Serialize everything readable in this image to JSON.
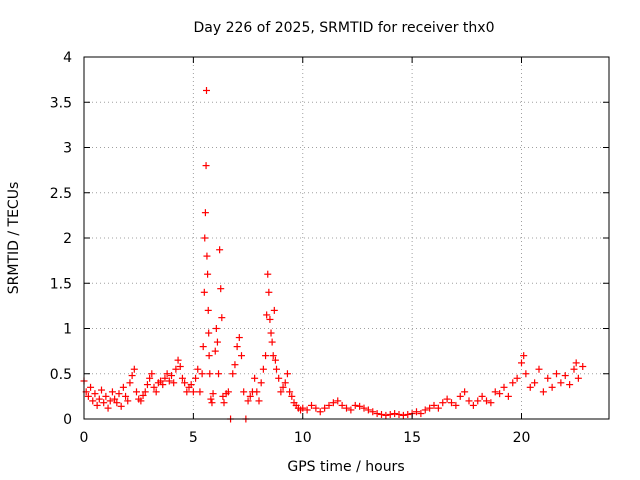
{
  "chart_data": {
    "type": "scatter",
    "title": "Day 226 of 2025, SRMTID for receiver thx0",
    "xlabel": "GPS time / hours",
    "ylabel": "SRMTID / TECUs",
    "xlim": [
      0,
      24
    ],
    "ylim": [
      0,
      4
    ],
    "xticks": [
      0,
      5,
      10,
      15,
      20
    ],
    "yticks": [
      0,
      0.5,
      1,
      1.5,
      2,
      2.5,
      3,
      3.5,
      4
    ],
    "xtick_labels": [
      "0",
      "5",
      "10",
      "15",
      "20"
    ],
    "ytick_labels": [
      "0",
      "0.5",
      "1",
      "1.5",
      "2",
      "2.5",
      "3",
      "3.5",
      "4"
    ],
    "grid": true,
    "marker": "+",
    "color": "#ff0000",
    "series": [
      {
        "name": "thx0",
        "points": [
          [
            0.0,
            0.42
          ],
          [
            0.1,
            0.3
          ],
          [
            0.2,
            0.25
          ],
          [
            0.3,
            0.35
          ],
          [
            0.4,
            0.2
          ],
          [
            0.5,
            0.28
          ],
          [
            0.6,
            0.15
          ],
          [
            0.7,
            0.22
          ],
          [
            0.8,
            0.32
          ],
          [
            0.9,
            0.18
          ],
          [
            1.0,
            0.25
          ],
          [
            1.1,
            0.12
          ],
          [
            1.2,
            0.2
          ],
          [
            1.3,
            0.3
          ],
          [
            1.4,
            0.22
          ],
          [
            1.5,
            0.18
          ],
          [
            1.6,
            0.28
          ],
          [
            1.7,
            0.14
          ],
          [
            1.8,
            0.35
          ],
          [
            1.9,
            0.25
          ],
          [
            2.0,
            0.2
          ],
          [
            2.1,
            0.4
          ],
          [
            2.2,
            0.48
          ],
          [
            2.3,
            0.55
          ],
          [
            2.4,
            0.3
          ],
          [
            2.5,
            0.22
          ],
          [
            2.6,
            0.2
          ],
          [
            2.7,
            0.26
          ],
          [
            2.8,
            0.3
          ],
          [
            2.9,
            0.38
          ],
          [
            3.0,
            0.45
          ],
          [
            3.1,
            0.5
          ],
          [
            3.2,
            0.35
          ],
          [
            3.3,
            0.3
          ],
          [
            3.4,
            0.4
          ],
          [
            3.5,
            0.42
          ],
          [
            3.6,
            0.38
          ],
          [
            3.7,
            0.45
          ],
          [
            3.8,
            0.5
          ],
          [
            3.9,
            0.42
          ],
          [
            4.0,
            0.48
          ],
          [
            4.1,
            0.4
          ],
          [
            4.2,
            0.55
          ],
          [
            4.3,
            0.65
          ],
          [
            4.4,
            0.58
          ],
          [
            4.5,
            0.45
          ],
          [
            4.6,
            0.4
          ],
          [
            4.7,
            0.3
          ],
          [
            4.8,
            0.35
          ],
          [
            4.9,
            0.38
          ],
          [
            5.0,
            0.3
          ],
          [
            5.1,
            0.45
          ],
          [
            5.2,
            0.55
          ],
          [
            5.3,
            0.3
          ],
          [
            5.4,
            0.5
          ],
          [
            5.45,
            0.8
          ],
          [
            5.5,
            1.4
          ],
          [
            5.52,
            2.0
          ],
          [
            5.55,
            2.28
          ],
          [
            5.58,
            2.8
          ],
          [
            5.6,
            3.63
          ],
          [
            5.62,
            1.8
          ],
          [
            5.65,
            1.6
          ],
          [
            5.68,
            1.2
          ],
          [
            5.7,
            0.95
          ],
          [
            5.72,
            0.7
          ],
          [
            5.75,
            0.5
          ],
          [
            5.8,
            0.22
          ],
          [
            5.85,
            0.18
          ],
          [
            5.9,
            0.28
          ],
          [
            6.0,
            0.75
          ],
          [
            6.05,
            1.0
          ],
          [
            6.1,
            0.85
          ],
          [
            6.15,
            0.5
          ],
          [
            6.2,
            1.87
          ],
          [
            6.25,
            1.44
          ],
          [
            6.3,
            1.12
          ],
          [
            6.35,
            0.25
          ],
          [
            6.4,
            0.18
          ],
          [
            6.5,
            0.28
          ],
          [
            6.6,
            0.3
          ],
          [
            6.7,
            0.0
          ],
          [
            6.8,
            0.5
          ],
          [
            6.9,
            0.6
          ],
          [
            7.0,
            0.8
          ],
          [
            7.1,
            0.9
          ],
          [
            7.2,
            0.7
          ],
          [
            7.3,
            0.3
          ],
          [
            7.4,
            0.0
          ],
          [
            7.5,
            0.2
          ],
          [
            7.6,
            0.25
          ],
          [
            7.7,
            0.3
          ],
          [
            7.8,
            0.45
          ],
          [
            7.9,
            0.3
          ],
          [
            8.0,
            0.2
          ],
          [
            8.1,
            0.4
          ],
          [
            8.2,
            0.55
          ],
          [
            8.3,
            0.7
          ],
          [
            8.35,
            1.15
          ],
          [
            8.4,
            1.6
          ],
          [
            8.45,
            1.4
          ],
          [
            8.5,
            1.1
          ],
          [
            8.55,
            0.95
          ],
          [
            8.6,
            0.85
          ],
          [
            8.65,
            0.7
          ],
          [
            8.7,
            1.2
          ],
          [
            8.75,
            0.65
          ],
          [
            8.8,
            0.55
          ],
          [
            8.9,
            0.45
          ],
          [
            9.0,
            0.3
          ],
          [
            9.1,
            0.35
          ],
          [
            9.2,
            0.4
          ],
          [
            9.3,
            0.5
          ],
          [
            9.4,
            0.3
          ],
          [
            9.5,
            0.25
          ],
          [
            9.6,
            0.18
          ],
          [
            9.7,
            0.15
          ],
          [
            9.8,
            0.12
          ],
          [
            9.9,
            0.1
          ],
          [
            10.0,
            0.12
          ],
          [
            10.2,
            0.1
          ],
          [
            10.4,
            0.15
          ],
          [
            10.6,
            0.12
          ],
          [
            10.8,
            0.08
          ],
          [
            11.0,
            0.12
          ],
          [
            11.2,
            0.15
          ],
          [
            11.4,
            0.18
          ],
          [
            11.6,
            0.2
          ],
          [
            11.8,
            0.15
          ],
          [
            12.0,
            0.12
          ],
          [
            12.2,
            0.1
          ],
          [
            12.4,
            0.15
          ],
          [
            12.6,
            0.14
          ],
          [
            12.8,
            0.12
          ],
          [
            13.0,
            0.1
          ],
          [
            13.2,
            0.08
          ],
          [
            13.4,
            0.06
          ],
          [
            13.6,
            0.05
          ],
          [
            13.8,
            0.04
          ],
          [
            14.0,
            0.05
          ],
          [
            14.2,
            0.06
          ],
          [
            14.4,
            0.05
          ],
          [
            14.6,
            0.04
          ],
          [
            14.8,
            0.05
          ],
          [
            15.0,
            0.06
          ],
          [
            15.2,
            0.08
          ],
          [
            15.4,
            0.06
          ],
          [
            15.6,
            0.1
          ],
          [
            15.8,
            0.12
          ],
          [
            16.0,
            0.15
          ],
          [
            16.2,
            0.12
          ],
          [
            16.4,
            0.18
          ],
          [
            16.6,
            0.22
          ],
          [
            16.8,
            0.18
          ],
          [
            17.0,
            0.15
          ],
          [
            17.2,
            0.25
          ],
          [
            17.4,
            0.3
          ],
          [
            17.6,
            0.2
          ],
          [
            17.8,
            0.15
          ],
          [
            18.0,
            0.2
          ],
          [
            18.2,
            0.25
          ],
          [
            18.4,
            0.2
          ],
          [
            18.6,
            0.18
          ],
          [
            18.8,
            0.3
          ],
          [
            19.0,
            0.28
          ],
          [
            19.2,
            0.35
          ],
          [
            19.4,
            0.25
          ],
          [
            19.6,
            0.4
          ],
          [
            19.8,
            0.45
          ],
          [
            20.0,
            0.62
          ],
          [
            20.1,
            0.7
          ],
          [
            20.2,
            0.5
          ],
          [
            20.4,
            0.35
          ],
          [
            20.6,
            0.4
          ],
          [
            20.8,
            0.55
          ],
          [
            21.0,
            0.3
          ],
          [
            21.2,
            0.45
          ],
          [
            21.4,
            0.35
          ],
          [
            21.6,
            0.5
          ],
          [
            21.8,
            0.4
          ],
          [
            22.0,
            0.48
          ],
          [
            22.2,
            0.38
          ],
          [
            22.4,
            0.55
          ],
          [
            22.5,
            0.62
          ],
          [
            22.6,
            0.45
          ],
          [
            22.8,
            0.58
          ]
        ]
      }
    ]
  }
}
